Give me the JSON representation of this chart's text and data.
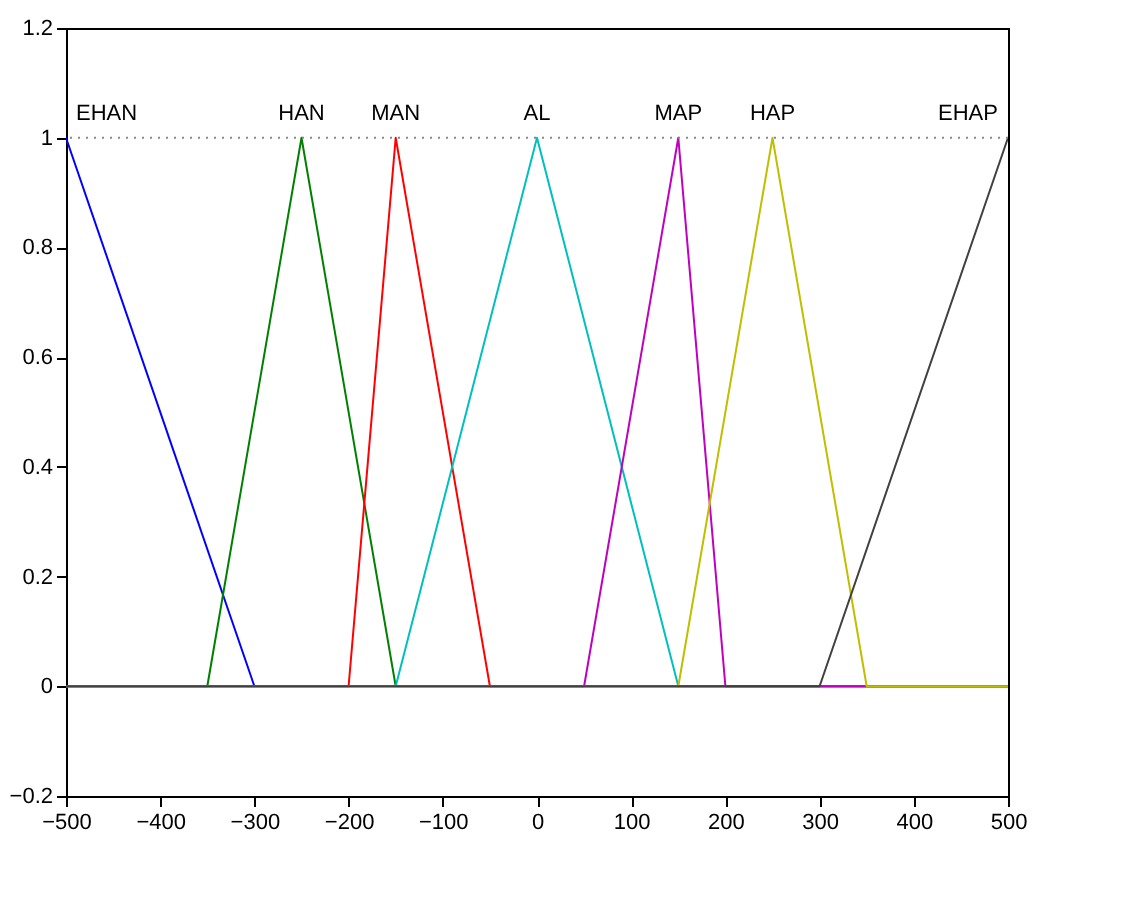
{
  "chart_data": {
    "type": "line",
    "xlim": [
      -500,
      500
    ],
    "xticks": [
      -500,
      -400,
      -300,
      -200,
      -100,
      0,
      100,
      200,
      300,
      400,
      500
    ],
    "ylim": [
      -0.2,
      1.2
    ],
    "yticks": [
      -0.2,
      0,
      0.2,
      0.4,
      0.6,
      0.8,
      1,
      1.2
    ],
    "grid": false,
    "legend": false,
    "line_style": "solid",
    "marker": "none",
    "ref_lines": [
      {
        "axis": "y",
        "value": 1,
        "color": "#888888",
        "line_style": "dotted"
      }
    ],
    "series": [
      {
        "name": "EHAN",
        "color": "#0000ff",
        "x": [
          -500,
          -300
        ],
        "values": [
          1,
          0
        ]
      },
      {
        "name": "HAN",
        "color": "#008000",
        "x": [
          -500,
          -350,
          -250,
          -150,
          500
        ],
        "values": [
          0,
          0,
          1,
          0,
          0
        ]
      },
      {
        "name": "MAN",
        "color": "#ff0000",
        "x": [
          -500,
          -200,
          -150,
          -50,
          500
        ],
        "values": [
          0,
          0,
          1,
          0,
          0
        ]
      },
      {
        "name": "AL",
        "color": "#00bfbf",
        "x": [
          -500,
          -150,
          0,
          150,
          500
        ],
        "values": [
          0,
          0,
          1,
          0,
          0
        ]
      },
      {
        "name": "MAP",
        "color": "#bf00bf",
        "x": [
          -500,
          50,
          150,
          200,
          500
        ],
        "values": [
          0,
          0,
          1,
          0,
          0
        ]
      },
      {
        "name": "HAP",
        "color": "#bfbf00",
        "x": [
          -500,
          150,
          250,
          350,
          500
        ],
        "values": [
          0,
          0,
          1,
          0,
          0
        ]
      },
      {
        "name": "EHAP",
        "color": "#404040",
        "x": [
          -500,
          300,
          500
        ],
        "values": [
          0,
          0,
          1
        ]
      }
    ]
  }
}
